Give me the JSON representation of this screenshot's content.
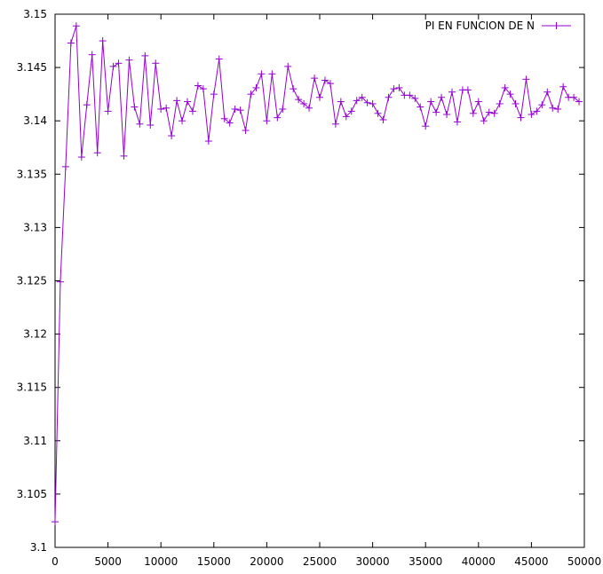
{
  "chart_data": {
    "type": "line",
    "title": "",
    "xlabel": "",
    "ylabel": "",
    "xlim": [
      0,
      50000
    ],
    "ylim": [
      3.1,
      3.15
    ],
    "xticks": [
      "0",
      "5000",
      "10000",
      "15000",
      "20000",
      "25000",
      "30000",
      "35000",
      "40000",
      "45000",
      "50000"
    ],
    "yticks": [
      "3.1",
      "3.105",
      "3.11",
      "3.115",
      "3.12",
      "3.125",
      "3.13",
      "3.135",
      "3.14",
      "3.145",
      "3.15"
    ],
    "legend_position": "top-right",
    "grid": false,
    "series": [
      {
        "name": "PI EN FUNCION DE N",
        "color": "#9400d3",
        "marker": "plus",
        "x": [
          0,
          500,
          1000,
          1500,
          2000,
          2500,
          3000,
          3500,
          4000,
          4500,
          5000,
          5500,
          6000,
          6500,
          7000,
          7500,
          8000,
          8500,
          9000,
          9500,
          10000,
          10500,
          11000,
          11500,
          12000,
          12500,
          13000,
          13500,
          14000,
          14500,
          15000,
          15500,
          16000,
          16500,
          17000,
          17500,
          18000,
          18500,
          19000,
          19500,
          20000,
          20500,
          21000,
          21500,
          22000,
          22500,
          23000,
          23500,
          24000,
          24500,
          25000,
          25500,
          26000,
          26500,
          27000,
          27500,
          28000,
          28500,
          29000,
          29500,
          30000,
          30500,
          31000,
          31500,
          32000,
          32500,
          33000,
          33500,
          34000,
          34500,
          35000,
          35500,
          36000,
          36500,
          37000,
          37500,
          38000,
          38500,
          39000,
          39500,
          40000,
          40500,
          41000,
          41500,
          42000,
          42500,
          43000,
          43500,
          44000,
          44500,
          45000,
          45500,
          46000,
          46500,
          47000,
          47500,
          48000,
          48500,
          49000,
          49500
        ],
        "y": [
          3.1024,
          3.1249,
          3.1357,
          3.1473,
          3.1489,
          3.1366,
          3.1415,
          3.1462,
          3.137,
          3.1475,
          3.1409,
          3.1451,
          3.1454,
          3.1367,
          3.1457,
          3.1413,
          3.1397,
          3.1461,
          3.1396,
          3.1454,
          3.1411,
          3.1412,
          3.1386,
          3.1419,
          3.14,
          3.1418,
          3.1409,
          3.1433,
          3.143,
          3.1381,
          3.1425,
          3.1458,
          3.1402,
          3.1398,
          3.1411,
          3.141,
          3.1391,
          3.1425,
          3.1431,
          3.1444,
          3.14,
          3.1444,
          3.1403,
          3.1411,
          3.1451,
          3.143,
          3.142,
          3.1416,
          3.1412,
          3.144,
          3.1422,
          3.1438,
          3.1435,
          3.1397,
          3.1418,
          3.1404,
          3.1409,
          3.1419,
          3.1422,
          3.1417,
          3.1416,
          3.1407,
          3.1401,
          3.1422,
          3.143,
          3.1431,
          3.1424,
          3.1424,
          3.1421,
          3.1413,
          3.1395,
          3.1418,
          3.1408,
          3.1422,
          3.1406,
          3.1427,
          3.1399,
          3.1429,
          3.1429,
          3.1407,
          3.1418,
          3.14,
          3.1408,
          3.1407,
          3.1416,
          3.1431,
          3.1425,
          3.1416,
          3.1403,
          3.1439,
          3.1406,
          3.1409,
          3.1415,
          3.1427,
          3.1412,
          3.1411,
          3.1432,
          3.1422,
          3.1422,
          3.1418
        ]
      }
    ]
  }
}
